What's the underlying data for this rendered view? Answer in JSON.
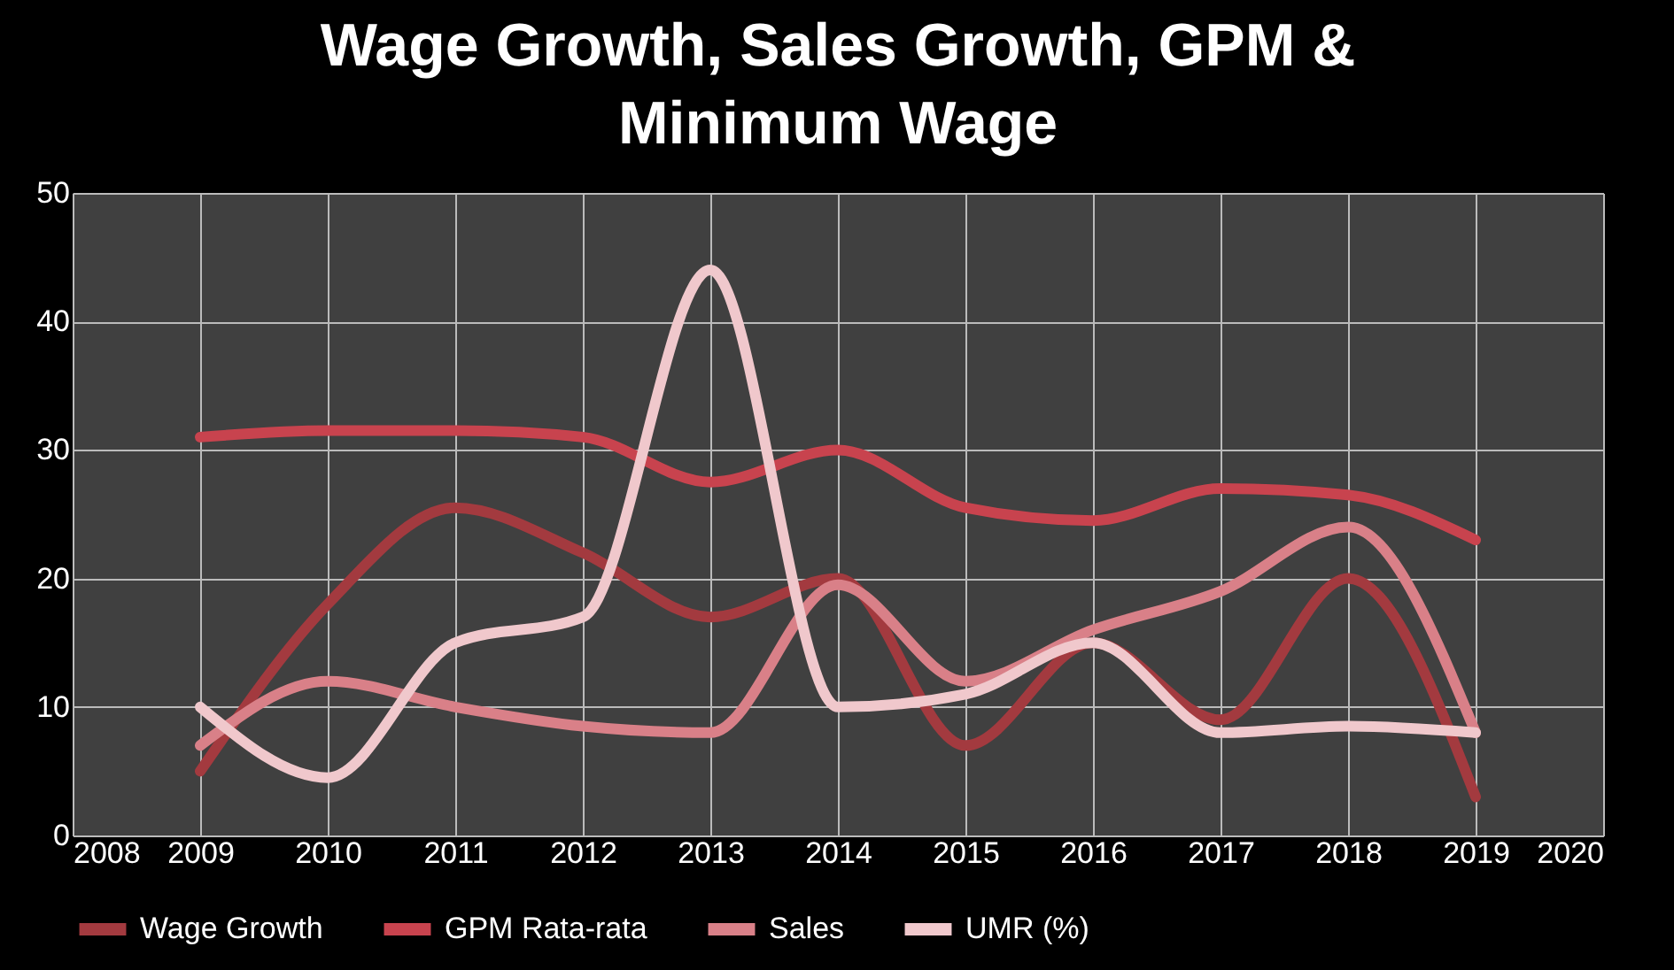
{
  "chart_data": {
    "type": "line",
    "title": "Wage Growth, Sales Growth, GPM & Minimum Wage",
    "x": [
      2009,
      2010,
      2011,
      2012,
      2013,
      2014,
      2015,
      2016,
      2017,
      2018,
      2019
    ],
    "series": [
      {
        "name": "Wage Growth",
        "color": "#a33a3f",
        "values": [
          5,
          18,
          25.5,
          22,
          17,
          20,
          7,
          15,
          9,
          20,
          3
        ]
      },
      {
        "name": "GPM Rata-rata",
        "color": "#c8434e",
        "values": [
          31,
          31.5,
          31.5,
          31,
          27.5,
          30,
          25.5,
          24.5,
          27,
          26.5,
          23
        ]
      },
      {
        "name": "Sales",
        "color": "#d98088",
        "values": [
          7,
          12,
          10,
          8.5,
          8,
          19.5,
          12,
          16,
          19,
          24,
          8
        ]
      },
      {
        "name": "UMR (%)",
        "color": "#f0c8cc",
        "values": [
          10,
          4.5,
          15,
          17,
          44,
          10,
          11,
          15,
          8,
          8.5,
          8
        ]
      }
    ],
    "xlim": [
      2008,
      2020
    ],
    "xticks": [
      2008,
      2009,
      2010,
      2011,
      2012,
      2013,
      2014,
      2015,
      2016,
      2017,
      2018,
      2019,
      2020
    ],
    "ylim": [
      0,
      50
    ],
    "yticks": [
      0,
      10,
      20,
      30,
      40,
      50
    ],
    "grid": true,
    "legend": "bottom",
    "marker": "none",
    "line_style": "solid"
  }
}
